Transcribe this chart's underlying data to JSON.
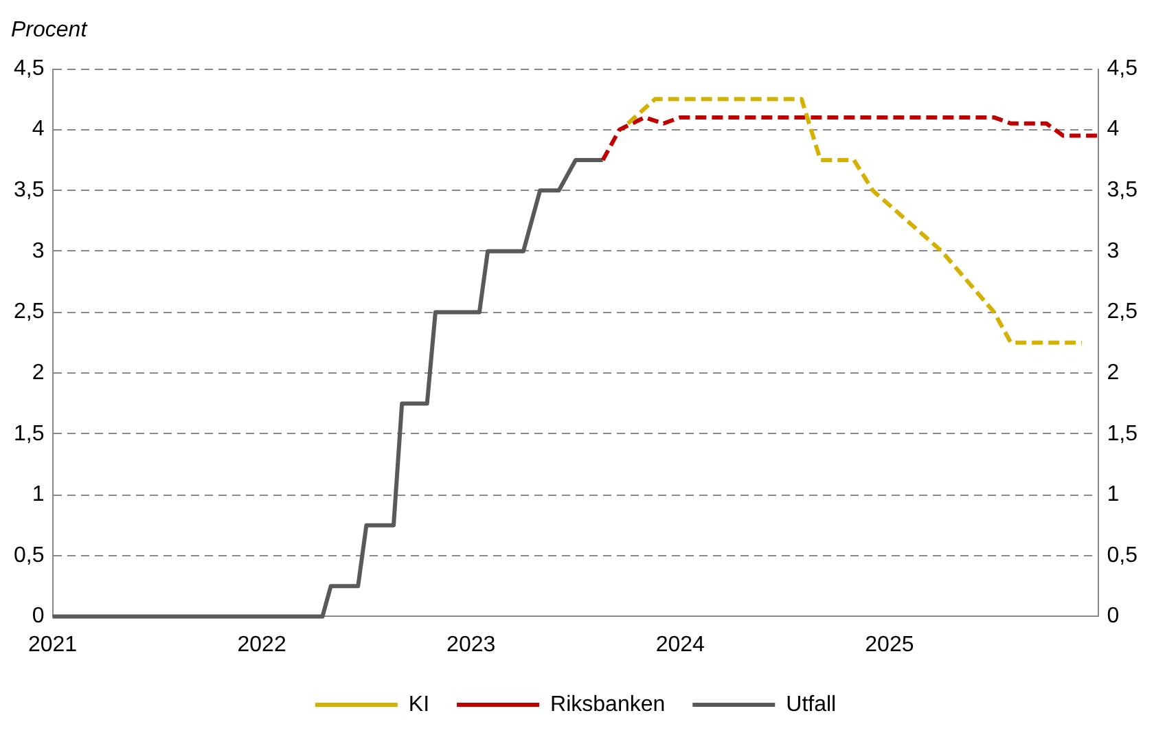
{
  "chart_data": {
    "type": "line",
    "ylabel": "Procent",
    "xlim": [
      2021,
      2026
    ],
    "xticks": [
      2021,
      2022,
      2023,
      2024,
      2025
    ],
    "ylim": [
      0,
      4.5
    ],
    "yticks": [
      0,
      {
        "value": 0.5,
        "label": "0,5"
      },
      1,
      {
        "value": 1.5,
        "label": "1,5"
      },
      2,
      {
        "value": 2.5,
        "label": "2,5"
      },
      3,
      {
        "value": 3.5,
        "label": "3,5"
      },
      4,
      {
        "value": 4.5,
        "label": "4,5"
      }
    ],
    "y2lim": [
      0,
      4.5
    ],
    "y2ticks": [
      0,
      {
        "value": 0.5,
        "label": "0,5"
      },
      1,
      {
        "value": 1.5,
        "label": "1,5"
      },
      2,
      {
        "value": 2.5,
        "label": "2,5"
      },
      3,
      {
        "value": 3.5,
        "label": "3,5"
      },
      4,
      {
        "value": 4.5,
        "label": "4,5"
      }
    ],
    "grid": "y",
    "legend": "bottom",
    "marker": "none",
    "series": [
      {
        "name": "KI",
        "color": "#d4b000",
        "line_style": "dashed",
        "x": [
          2023.75,
          2023.88,
          2024.58,
          2024.67,
          2024.83,
          2024.92,
          2025.25,
          2025.5,
          2025.58,
          2025.92
        ],
        "values": [
          4.05,
          4.25,
          4.25,
          3.75,
          3.75,
          3.5,
          3.0,
          2.5,
          2.25,
          2.25
        ]
      },
      {
        "name": "Riksbanken",
        "color": "#c00000",
        "line_style": "dashed",
        "x": [
          2023.63,
          2023.71,
          2023.83,
          2023.92,
          2024.0,
          2025.5,
          2025.58,
          2025.75,
          2025.83,
          2026.0
        ],
        "values": [
          3.75,
          4.0,
          4.1,
          4.05,
          4.1,
          4.1,
          4.05,
          4.05,
          3.95,
          3.95
        ]
      },
      {
        "name": "Utfall",
        "color": "#595959",
        "line_style": "solid",
        "x": [
          2021.0,
          2022.29,
          2022.33,
          2022.46,
          2022.5,
          2022.63,
          2022.67,
          2022.79,
          2022.83,
          2023.04,
          2023.08,
          2023.25,
          2023.33,
          2023.42,
          2023.5,
          2023.63
        ],
        "values": [
          0,
          0,
          0.25,
          0.25,
          0.75,
          0.75,
          1.75,
          1.75,
          2.5,
          2.5,
          3.0,
          3.0,
          3.5,
          3.5,
          3.75,
          3.75
        ]
      }
    ]
  }
}
